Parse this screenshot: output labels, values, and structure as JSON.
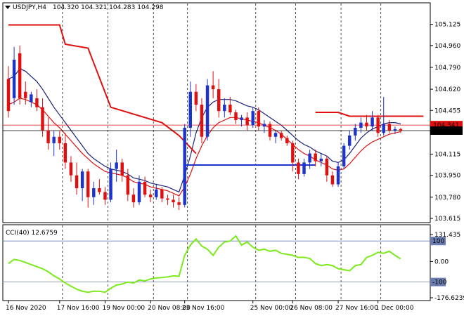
{
  "header": {
    "symbol": "USDJPY,H4",
    "ohlc": "104.320 104.321 104.283 104.298"
  },
  "chart_data": [
    {
      "type": "candlestick",
      "title": "USDJPY,H4",
      "ylim": [
        103.615,
        105.205
      ],
      "y_ticks": [
        "105.125",
        "104.960",
        "104.790",
        "104.620",
        "104.455",
        "104.285",
        "104.115",
        "103.950",
        "103.780",
        "103.615"
      ],
      "x_ticks": [
        "16 Nov 2020",
        "17 Nov 16:00",
        "19 Nov 00:00",
        "20 Nov 08:00",
        "23 Nov 16:00",
        "25 Nov 00:00",
        "26 Nov 08:00",
        "27 Nov 16:00",
        "1 Dec 00:00"
      ],
      "price_tags": [
        {
          "label": "104.341",
          "value": 104.341,
          "color": "#e01010"
        },
        {
          "label": "104.298",
          "value": 104.298,
          "color": "#000000"
        }
      ],
      "candles": [
        {
          "o": 104.7,
          "h": 104.8,
          "l": 104.4,
          "c": 104.45
        },
        {
          "o": 104.55,
          "h": 104.95,
          "l": 104.5,
          "c": 104.85
        },
        {
          "o": 104.9,
          "h": 104.96,
          "l": 104.5,
          "c": 104.55
        },
        {
          "o": 104.6,
          "h": 104.68,
          "l": 104.5,
          "c": 104.55
        },
        {
          "o": 104.52,
          "h": 104.6,
          "l": 104.48,
          "c": 104.58
        },
        {
          "o": 104.55,
          "h": 104.62,
          "l": 104.45,
          "c": 104.48
        },
        {
          "o": 104.48,
          "h": 104.55,
          "l": 104.25,
          "c": 104.3
        },
        {
          "o": 104.3,
          "h": 104.4,
          "l": 104.15,
          "c": 104.2
        },
        {
          "o": 104.2,
          "h": 104.3,
          "l": 104.1,
          "c": 104.25
        },
        {
          "o": 104.25,
          "h": 104.3,
          "l": 104.15,
          "c": 104.2
        },
        {
          "o": 104.2,
          "h": 104.28,
          "l": 104.0,
          "c": 104.05
        },
        {
          "o": 104.05,
          "h": 104.1,
          "l": 103.9,
          "c": 103.95
        },
        {
          "o": 103.95,
          "h": 104.05,
          "l": 103.8,
          "c": 103.85
        },
        {
          "o": 103.85,
          "h": 104.0,
          "l": 103.75,
          "c": 103.98
        },
        {
          "o": 103.98,
          "h": 104.0,
          "l": 103.7,
          "c": 103.78
        },
        {
          "o": 103.78,
          "h": 103.9,
          "l": 103.72,
          "c": 103.85
        },
        {
          "o": 103.85,
          "h": 103.92,
          "l": 103.8,
          "c": 103.82
        },
        {
          "o": 103.82,
          "h": 103.86,
          "l": 103.72,
          "c": 103.76
        },
        {
          "o": 103.76,
          "h": 104.05,
          "l": 103.74,
          "c": 104.0
        },
        {
          "o": 104.0,
          "h": 104.15,
          "l": 103.9,
          "c": 104.05
        },
        {
          "o": 104.05,
          "h": 104.08,
          "l": 103.9,
          "c": 103.95
        },
        {
          "o": 103.95,
          "h": 104.0,
          "l": 103.75,
          "c": 103.8
        },
        {
          "o": 103.8,
          "h": 103.85,
          "l": 103.7,
          "c": 103.74
        },
        {
          "o": 103.74,
          "h": 103.95,
          "l": 103.72,
          "c": 103.9
        },
        {
          "o": 103.9,
          "h": 103.94,
          "l": 103.78,
          "c": 103.8
        },
        {
          "o": 103.8,
          "h": 103.84,
          "l": 103.74,
          "c": 103.78
        },
        {
          "o": 103.78,
          "h": 103.88,
          "l": 103.76,
          "c": 103.84
        },
        {
          "o": 103.84,
          "h": 103.86,
          "l": 103.74,
          "c": 103.77
        },
        {
          "o": 103.77,
          "h": 103.8,
          "l": 103.72,
          "c": 103.76
        },
        {
          "o": 103.76,
          "h": 103.8,
          "l": 103.7,
          "c": 103.74
        },
        {
          "o": 103.74,
          "h": 103.78,
          "l": 103.68,
          "c": 103.72
        },
        {
          "o": 103.72,
          "h": 104.35,
          "l": 103.7,
          "c": 104.32
        },
        {
          "o": 104.32,
          "h": 104.68,
          "l": 104.25,
          "c": 104.6
        },
        {
          "o": 104.6,
          "h": 104.66,
          "l": 104.45,
          "c": 104.5
        },
        {
          "o": 104.5,
          "h": 104.55,
          "l": 104.2,
          "c": 104.25
        },
        {
          "o": 104.25,
          "h": 104.7,
          "l": 104.22,
          "c": 104.65
        },
        {
          "o": 104.65,
          "h": 104.76,
          "l": 104.55,
          "c": 104.62
        },
        {
          "o": 104.62,
          "h": 104.7,
          "l": 104.4,
          "c": 104.45
        },
        {
          "o": 104.45,
          "h": 104.55,
          "l": 104.4,
          "c": 104.5
        },
        {
          "o": 104.5,
          "h": 104.56,
          "l": 104.42,
          "c": 104.44
        },
        {
          "o": 104.44,
          "h": 104.46,
          "l": 104.35,
          "c": 104.38
        },
        {
          "o": 104.38,
          "h": 104.42,
          "l": 104.33,
          "c": 104.4
        },
        {
          "o": 104.4,
          "h": 104.44,
          "l": 104.3,
          "c": 104.34
        },
        {
          "o": 104.34,
          "h": 104.48,
          "l": 104.32,
          "c": 104.45
        },
        {
          "o": 104.45,
          "h": 104.48,
          "l": 104.3,
          "c": 104.33
        },
        {
          "o": 104.33,
          "h": 104.38,
          "l": 104.28,
          "c": 104.35
        },
        {
          "o": 104.35,
          "h": 104.37,
          "l": 104.22,
          "c": 104.25
        },
        {
          "o": 104.25,
          "h": 104.3,
          "l": 104.2,
          "c": 104.28
        },
        {
          "o": 104.28,
          "h": 104.3,
          "l": 104.22,
          "c": 104.24
        },
        {
          "o": 104.24,
          "h": 104.26,
          "l": 104.18,
          "c": 104.2
        },
        {
          "o": 104.2,
          "h": 104.22,
          "l": 103.98,
          "c": 104.05
        },
        {
          "o": 104.05,
          "h": 104.08,
          "l": 103.92,
          "c": 103.96
        },
        {
          "o": 103.96,
          "h": 104.08,
          "l": 103.94,
          "c": 104.05
        },
        {
          "o": 104.05,
          "h": 104.15,
          "l": 104.0,
          "c": 104.12
        },
        {
          "o": 104.12,
          "h": 104.15,
          "l": 104.02,
          "c": 104.06
        },
        {
          "o": 104.06,
          "h": 104.12,
          "l": 104.02,
          "c": 104.08
        },
        {
          "o": 104.08,
          "h": 104.1,
          "l": 103.9,
          "c": 103.95
        },
        {
          "o": 103.95,
          "h": 103.98,
          "l": 103.86,
          "c": 103.88
        },
        {
          "o": 103.88,
          "h": 104.05,
          "l": 103.86,
          "c": 104.02
        },
        {
          "o": 104.02,
          "h": 104.2,
          "l": 104.0,
          "c": 104.18
        },
        {
          "o": 104.18,
          "h": 104.3,
          "l": 104.15,
          "c": 104.26
        },
        {
          "o": 104.26,
          "h": 104.35,
          "l": 104.22,
          "c": 104.32
        },
        {
          "o": 104.32,
          "h": 104.4,
          "l": 104.28,
          "c": 104.36
        },
        {
          "o": 104.36,
          "h": 104.42,
          "l": 104.3,
          "c": 104.33
        },
        {
          "o": 104.33,
          "h": 104.45,
          "l": 104.3,
          "c": 104.4
        },
        {
          "o": 104.4,
          "h": 104.42,
          "l": 104.25,
          "c": 104.28
        },
        {
          "o": 104.28,
          "h": 104.56,
          "l": 104.26,
          "c": 104.35
        },
        {
          "o": 104.35,
          "h": 104.38,
          "l": 104.28,
          "c": 104.3
        },
        {
          "o": 104.3,
          "h": 104.33,
          "l": 104.27,
          "c": 104.31
        },
        {
          "o": 104.31,
          "h": 104.32,
          "l": 104.28,
          "c": 104.298
        }
      ],
      "series": [
        {
          "type": "line",
          "color": "#1a237e",
          "values": [
            104.7,
            104.72,
            104.78,
            104.76,
            104.72,
            104.68,
            104.62,
            104.55,
            104.48,
            104.42,
            104.36,
            104.3,
            104.24,
            104.18,
            104.12,
            104.08,
            104.05,
            104.02,
            104.0,
            103.99,
            103.98,
            103.96,
            103.93,
            103.92,
            103.91,
            103.89,
            103.88,
            103.87,
            103.86,
            103.84,
            103.82,
            103.95,
            104.1,
            104.28,
            104.4,
            104.48,
            104.52,
            104.54,
            104.54,
            104.54,
            104.53,
            104.51,
            104.49,
            104.48,
            104.46,
            104.43,
            104.4,
            104.37,
            104.34,
            104.3,
            104.26,
            104.22,
            104.19,
            104.17,
            104.14,
            104.12,
            104.1,
            104.06,
            104.05,
            104.07,
            104.12,
            104.18,
            104.24,
            104.28,
            104.31,
            104.33,
            104.35,
            104.36,
            104.36,
            104.35
          ]
        },
        {
          "type": "line",
          "color": "#e01010",
          "values": [
            104.5,
            104.52,
            104.55,
            104.54,
            104.52,
            104.5,
            104.46,
            104.41,
            104.36,
            104.32,
            104.27,
            104.22,
            104.17,
            104.12,
            104.08,
            104.04,
            104.01,
            103.98,
            103.97,
            103.96,
            103.95,
            103.93,
            103.9,
            103.89,
            103.88,
            103.86,
            103.85,
            103.84,
            103.83,
            103.81,
            103.79,
            103.86,
            103.96,
            104.08,
            104.18,
            104.26,
            104.32,
            104.36,
            104.38,
            104.4,
            104.4,
            104.39,
            104.38,
            104.37,
            104.36,
            104.34,
            104.32,
            104.3,
            104.27,
            104.23,
            104.19,
            104.15,
            104.12,
            104.1,
            104.07,
            104.05,
            104.03,
            104.0,
            103.99,
            104.0,
            104.04,
            104.09,
            104.14,
            104.18,
            104.21,
            104.23,
            104.25,
            104.27,
            104.28,
            104.29
          ]
        },
        {
          "type": "step",
          "color": "#e01010",
          "segments": [
            [
              [
                0,
                105.12
              ],
              [
                9,
                105.12
              ],
              [
                10,
                104.97
              ],
              [
                14,
                104.94
              ],
              [
                18,
                104.48
              ],
              [
                27,
                104.36
              ],
              [
                30,
                104.26
              ],
              [
                33,
                104.12
              ]
            ],
            [
              [
                54,
                104.44
              ],
              [
                58,
                104.44
              ],
              [
                60,
                104.41
              ],
              [
                73,
                104.41
              ]
            ]
          ]
        },
        {
          "type": "step",
          "color": "#1d33cc",
          "segments": [
            [
              [
                31,
                104.03
              ],
              [
                54,
                104.03
              ]
            ]
          ]
        }
      ]
    },
    {
      "type": "line",
      "title": "CCI(40) 12.6759",
      "ylim": [
        -176.6239,
        131.435
      ],
      "y_ticks": [
        "131.435",
        "100",
        "0.00",
        "-100",
        "-176.6239"
      ],
      "levels": [
        100,
        -100
      ],
      "series": [
        {
          "name": "CCI(40)",
          "color": "#7bea1a",
          "values": [
            -10,
            10,
            5,
            -5,
            -15,
            -25,
            -35,
            -50,
            -70,
            -85,
            -105,
            -120,
            -135,
            -145,
            -150,
            -145,
            -145,
            -150,
            -130,
            -115,
            -110,
            -100,
            -105,
            -90,
            -95,
            -85,
            -80,
            -78,
            -75,
            -70,
            -72,
            30,
            80,
            110,
            75,
            60,
            30,
            70,
            95,
            100,
            125,
            80,
            95,
            70,
            55,
            60,
            50,
            55,
            40,
            35,
            30,
            20,
            20,
            15,
            -10,
            -20,
            -15,
            -20,
            -35,
            -40,
            -45,
            -20,
            -15,
            20,
            30,
            45,
            40,
            50,
            30,
            12.6759
          ]
        }
      ]
    }
  ]
}
